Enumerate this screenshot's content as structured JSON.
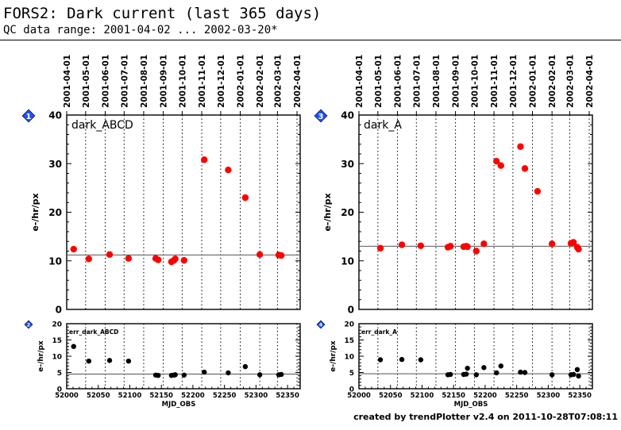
{
  "header": {
    "title": "FORS2: Dark current (last 365 days)",
    "subtitle": "QC data range: 2001-04-02 ... 2002-03-20*"
  },
  "footer": {
    "credit": "created by trendPlotter v2.4 on 2011-10-28T07:08:11"
  },
  "colors": {
    "main_points": "#ff0000",
    "err_points": "#000000",
    "badge": "#1f4fff",
    "grid": "#000000"
  },
  "date_labels": [
    "2001-04-01",
    "2001-05-01",
    "2001-06-01",
    "2001-07-01",
    "2001-08-01",
    "2001-09-01",
    "2001-10-01",
    "2001-11-01",
    "2001-12-01",
    "2002-01-01",
    "2002-02-01",
    "2002-03-01",
    "2002-04-01"
  ],
  "chart_data": [
    {
      "type": "scatter",
      "panel": "main-left",
      "badge": "1",
      "label": "dark_ABCD",
      "ylabel": "e-/hr/px",
      "ylim": [
        0,
        40
      ],
      "yticks": [
        0,
        10,
        20,
        30,
        40
      ],
      "xlim": [
        52000,
        52370
      ],
      "reference_line": 11.2,
      "points": [
        [
          52011,
          12.4
        ],
        [
          52035,
          10.4
        ],
        [
          52068,
          11.3
        ],
        [
          52098,
          10.5
        ],
        [
          52141,
          10.5
        ],
        [
          52145,
          10.2
        ],
        [
          52166,
          9.8
        ],
        [
          52170,
          10.1
        ],
        [
          52172,
          10.4
        ],
        [
          52186,
          10.1
        ],
        [
          52218,
          30.8
        ],
        [
          52256,
          28.7
        ],
        [
          52283,
          23.0
        ],
        [
          52306,
          11.3
        ],
        [
          52336,
          11.2
        ],
        [
          52340,
          11.1
        ]
      ]
    },
    {
      "type": "scatter",
      "panel": "err-left",
      "badge": "2",
      "label": "err_dark_ABCD",
      "xlabel": "MJD_OBS",
      "ylabel": "e-/hr/px",
      "ylim": [
        0,
        20
      ],
      "yticks": [
        0,
        5,
        10,
        15,
        20
      ],
      "xlim": [
        52000,
        52370
      ],
      "xticks": [
        52000,
        52050,
        52100,
        52150,
        52200,
        52250,
        52300,
        52350
      ],
      "reference_line": 4.5,
      "points": [
        [
          52011,
          13.0
        ],
        [
          52035,
          8.5
        ],
        [
          52068,
          8.7
        ],
        [
          52098,
          8.5
        ],
        [
          52141,
          4.2
        ],
        [
          52145,
          4.1
        ],
        [
          52166,
          4.1
        ],
        [
          52170,
          4.2
        ],
        [
          52172,
          4.3
        ],
        [
          52186,
          4.2
        ],
        [
          52218,
          5.1
        ],
        [
          52256,
          4.9
        ],
        [
          52283,
          6.8
        ],
        [
          52306,
          4.3
        ],
        [
          52336,
          4.3
        ],
        [
          52340,
          4.4
        ]
      ]
    },
    {
      "type": "scatter",
      "panel": "main-right",
      "badge": "3",
      "label": "dark_A",
      "ylabel": "e-/hr/px",
      "ylim": [
        0,
        40
      ],
      "yticks": [
        0,
        10,
        20,
        30,
        40
      ],
      "xlim": [
        52000,
        52370
      ],
      "reference_line": 13.0,
      "points": [
        [
          52034,
          12.6
        ],
        [
          52068,
          13.3
        ],
        [
          52098,
          13.1
        ],
        [
          52141,
          12.8
        ],
        [
          52145,
          13.0
        ],
        [
          52166,
          12.9
        ],
        [
          52170,
          13.0
        ],
        [
          52172,
          12.9
        ],
        [
          52186,
          12.0
        ],
        [
          52198,
          13.5
        ],
        [
          52218,
          30.5
        ],
        [
          52225,
          29.6
        ],
        [
          52256,
          33.5
        ],
        [
          52263,
          29.0
        ],
        [
          52283,
          24.3
        ],
        [
          52306,
          13.5
        ],
        [
          52336,
          13.6
        ],
        [
          52340,
          13.8
        ],
        [
          52346,
          12.8
        ],
        [
          52348,
          12.4
        ]
      ]
    },
    {
      "type": "scatter",
      "panel": "err-right",
      "badge": "4",
      "label": "err_dark_A",
      "xlabel": "MJD_OBS",
      "ylabel": "e-/hr/px",
      "ylim": [
        0,
        20
      ],
      "yticks": [
        0,
        5,
        10,
        15,
        20
      ],
      "xlim": [
        52000,
        52370
      ],
      "xticks": [
        52000,
        52050,
        52100,
        52150,
        52200,
        52250,
        52300,
        52350
      ],
      "reference_line": 4.6,
      "points": [
        [
          52034,
          8.9
        ],
        [
          52068,
          9.0
        ],
        [
          52098,
          8.9
        ],
        [
          52141,
          4.3
        ],
        [
          52145,
          4.4
        ],
        [
          52166,
          4.4
        ],
        [
          52170,
          4.5
        ],
        [
          52172,
          6.3
        ],
        [
          52186,
          4.3
        ],
        [
          52198,
          6.5
        ],
        [
          52218,
          4.9
        ],
        [
          52225,
          7.0
        ],
        [
          52256,
          5.1
        ],
        [
          52263,
          5.0
        ],
        [
          52306,
          4.3
        ],
        [
          52336,
          4.3
        ],
        [
          52340,
          4.4
        ],
        [
          52346,
          5.9
        ],
        [
          52348,
          3.9
        ]
      ]
    }
  ]
}
